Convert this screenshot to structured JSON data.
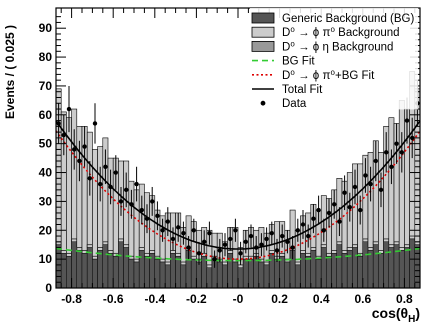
{
  "chart_data": {
    "type": "bar",
    "title": "",
    "xlabel_base": "cos(θ",
    "xlabel_sub": "H",
    "xlabel_close": ")",
    "ylabel": "Events / ( 0.025 )",
    "xlim": [
      -0.875,
      0.875
    ],
    "ylim": [
      0,
      97
    ],
    "bin_width": 0.025,
    "bin_start": -0.875,
    "x_ticks": [
      -0.8,
      -0.6,
      -0.4,
      -0.2,
      0,
      0.2,
      0.4,
      0.6,
      0.8
    ],
    "x_tick_labels": [
      "-0.8",
      "-0.6",
      "-0.4",
      "-0.2",
      "-0",
      "0.2",
      "0.4",
      "0.6",
      "0.8"
    ],
    "y_ticks": [
      0,
      10,
      20,
      30,
      40,
      50,
      60,
      70,
      80,
      90
    ],
    "y_tick_labels": [
      "0",
      "10",
      "20",
      "30",
      "40",
      "50",
      "60",
      "70",
      "80",
      "90"
    ],
    "colors": {
      "generic_bg": "#555555",
      "phi_pi0": "#cccccc",
      "phi_eta": "#999999",
      "bg_fit": "#33cc33",
      "sig_bg_fit": "#dd0000",
      "total_fit": "#000000",
      "data": "#000000"
    },
    "legend": {
      "position": "top-right",
      "entries": [
        {
          "key": "generic_bg",
          "style": "box",
          "label": "Generic Background (BG)"
        },
        {
          "key": "phi_pi0",
          "style": "box",
          "label": "D⁰ → ϕ π⁰ Background"
        },
        {
          "key": "phi_eta",
          "style": "box",
          "label": "D⁰ → ϕ η Background"
        },
        {
          "key": "bg_fit",
          "style": "dash",
          "label": "BG Fit"
        },
        {
          "key": "sig_bg_fit",
          "style": "dot",
          "label": "D⁰ → ϕ π⁰+BG Fit"
        },
        {
          "key": "total_fit",
          "style": "line",
          "label": "Total Fit"
        },
        {
          "key": "data",
          "style": "marker",
          "label": "Data"
        }
      ]
    },
    "series": [
      {
        "name": "Generic Background (BG)",
        "values": [
          15,
          12,
          11,
          16,
          13,
          12,
          14,
          10,
          13,
          15,
          12,
          11,
          16,
          14,
          10,
          9,
          13,
          11,
          12,
          10,
          9,
          8,
          12,
          11,
          8,
          13,
          10,
          9,
          11,
          7,
          10,
          9,
          8,
          12,
          9,
          7,
          10,
          10,
          11,
          9,
          8,
          12,
          10,
          11,
          9,
          13,
          8,
          12,
          11,
          13,
          10,
          14,
          11,
          12,
          15,
          12,
          13,
          14,
          11,
          16,
          13,
          15,
          12,
          16,
          14,
          15,
          13,
          14,
          17,
          15
        ]
      },
      {
        "name": "D⁰ → ϕ π⁰ Background",
        "values": [
          54,
          49,
          48,
          46,
          43,
          44,
          40,
          38,
          36,
          37,
          33,
          34,
          28,
          30,
          27,
          25,
          23,
          22,
          20,
          17,
          16,
          18,
          14,
          15,
          13,
          12,
          13,
          11,
          10,
          13,
          9,
          10,
          8,
          9,
          12,
          7,
          10,
          11,
          9,
          12,
          11,
          10,
          13,
          12,
          11,
          14,
          12,
          13,
          15,
          16,
          17,
          18,
          20,
          22,
          23,
          25,
          27,
          29,
          32,
          30,
          34,
          36,
          35,
          40,
          45,
          42,
          52,
          48,
          58,
          54
        ]
      },
      {
        "name": "D⁰ → ϕ η Background",
        "values": [
          16,
          13,
          12,
          17,
          14,
          13,
          15,
          11,
          14,
          16,
          13,
          12,
          17,
          15,
          11,
          10,
          14,
          12,
          13,
          11,
          10,
          9,
          13,
          12,
          9,
          14,
          11,
          10,
          12,
          8,
          11,
          10,
          9,
          13,
          10,
          8,
          11,
          11,
          12,
          10,
          9,
          13,
          11,
          12,
          10,
          14,
          9,
          13,
          12,
          14,
          11,
          15,
          12,
          13,
          16,
          13,
          14,
          15,
          12,
          17,
          14,
          16,
          13,
          17,
          15,
          16,
          14,
          15,
          18,
          16
        ]
      },
      {
        "name": "Data",
        "points": [
          [
            -0.8625,
            57,
            7
          ],
          [
            -0.8375,
            53,
            7
          ],
          [
            -0.8125,
            62,
            8
          ],
          [
            -0.7875,
            48,
            7
          ],
          [
            -0.7625,
            44,
            7
          ],
          [
            -0.7375,
            49,
            7
          ],
          [
            -0.7125,
            38,
            6
          ],
          [
            -0.6875,
            57,
            7
          ],
          [
            -0.6625,
            36,
            6
          ],
          [
            -0.6375,
            42,
            6
          ],
          [
            -0.6125,
            35,
            6
          ],
          [
            -0.5875,
            40,
            6
          ],
          [
            -0.5625,
            30,
            5
          ],
          [
            -0.5375,
            34,
            6
          ],
          [
            -0.5125,
            29,
            5
          ],
          [
            -0.4875,
            36,
            6
          ],
          [
            -0.4625,
            27,
            5
          ],
          [
            -0.4375,
            24,
            5
          ],
          [
            -0.4125,
            30,
            5
          ],
          [
            -0.3875,
            25,
            5
          ],
          [
            -0.3625,
            20,
            4
          ],
          [
            -0.3375,
            23,
            5
          ],
          [
            -0.3125,
            17,
            4
          ],
          [
            -0.2875,
            21,
            5
          ],
          [
            -0.2625,
            19,
            4
          ],
          [
            -0.2375,
            14,
            4
          ],
          [
            -0.2125,
            20,
            4
          ],
          [
            -0.1875,
            12,
            4
          ],
          [
            -0.1625,
            16,
            4
          ],
          [
            -0.1375,
            19,
            4
          ],
          [
            -0.1125,
            10,
            3
          ],
          [
            -0.0875,
            13,
            4
          ],
          [
            -0.0625,
            15,
            4
          ],
          [
            -0.0375,
            17,
            4
          ],
          [
            -0.0125,
            20,
            4
          ],
          [
            0.0125,
            12,
            4
          ],
          [
            0.0375,
            16,
            4
          ],
          [
            0.0625,
            18,
            4
          ],
          [
            0.0875,
            14,
            4
          ],
          [
            0.1125,
            15,
            4
          ],
          [
            0.1375,
            17,
            4
          ],
          [
            0.1625,
            19,
            4
          ],
          [
            0.1875,
            13,
            4
          ],
          [
            0.2125,
            18,
            4
          ],
          [
            0.2375,
            16,
            4
          ],
          [
            0.2625,
            14,
            4
          ],
          [
            0.2875,
            20,
            4
          ],
          [
            0.3125,
            22,
            5
          ],
          [
            0.3375,
            18,
            4
          ],
          [
            0.3625,
            24,
            5
          ],
          [
            0.3875,
            27,
            5
          ],
          [
            0.4125,
            20,
            4
          ],
          [
            0.4375,
            26,
            5
          ],
          [
            0.4625,
            29,
            5
          ],
          [
            0.4875,
            23,
            5
          ],
          [
            0.5125,
            33,
            6
          ],
          [
            0.5375,
            28,
            5
          ],
          [
            0.5625,
            35,
            6
          ],
          [
            0.5875,
            27,
            5
          ],
          [
            0.6125,
            39,
            6
          ],
          [
            0.6375,
            36,
            6
          ],
          [
            0.6625,
            44,
            7
          ],
          [
            0.6875,
            34,
            6
          ],
          [
            0.7125,
            47,
            7
          ],
          [
            0.7375,
            42,
            6
          ],
          [
            0.7625,
            50,
            7
          ],
          [
            0.7875,
            47,
            7
          ],
          [
            0.8125,
            58,
            8
          ],
          [
            0.8375,
            52,
            7
          ],
          [
            0.8625,
            64,
            8
          ]
        ]
      }
    ],
    "fits": {
      "bg_fit": {
        "name": "BG Fit",
        "c0": 9.5,
        "c2": 5.5
      },
      "sig_bg_fit": {
        "name": "D⁰ → ϕ π⁰+BG Fit",
        "c0": 10.0,
        "c2": 58.0
      },
      "total_fit": {
        "name": "Total Fit",
        "c0": 13.5,
        "c2": 58.0
      }
    }
  }
}
